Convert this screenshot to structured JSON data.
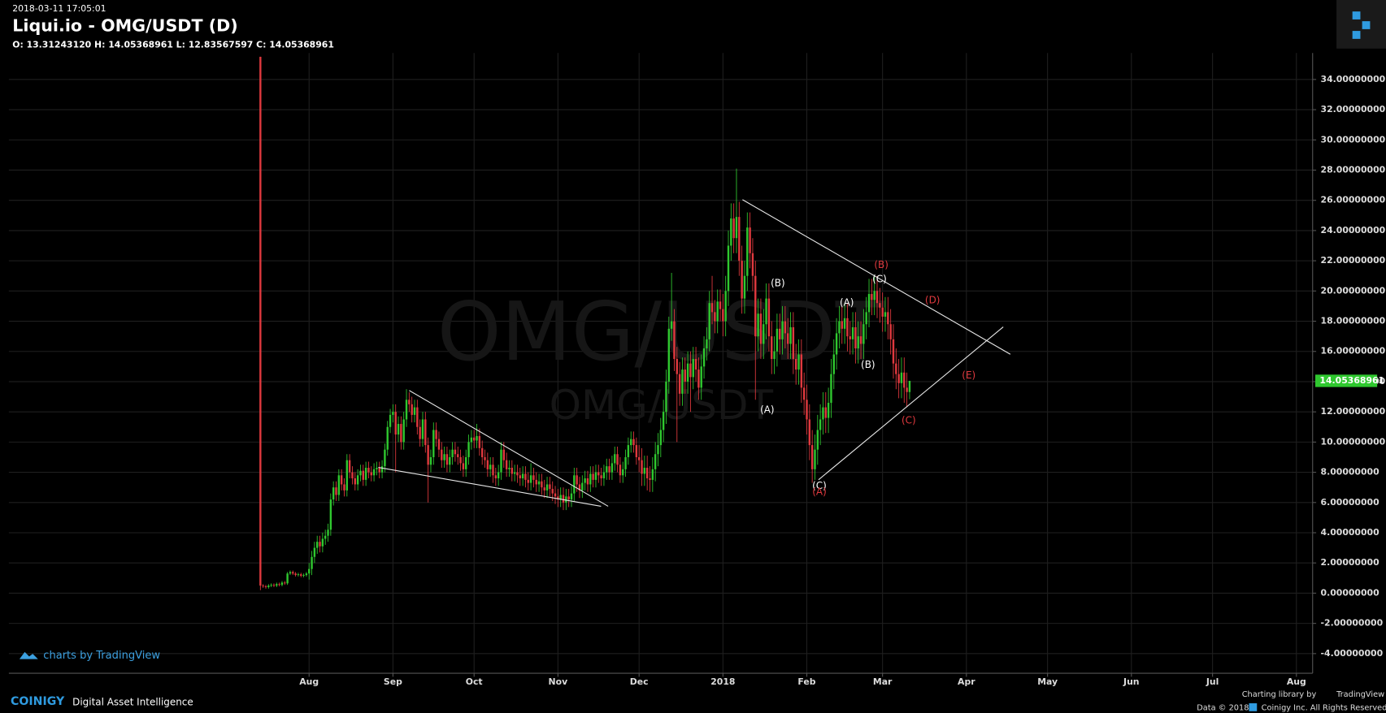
{
  "header": {
    "timestamp": "2018-03-11 17:05:01",
    "title": "Liqui.io - OMG/USDT (D)",
    "ohlc_text": "O: 13.31243120 H: 14.05368961 L: 12.83567597 C: 14.05368961"
  },
  "chart_data": {
    "type": "candlestick",
    "watermark": "OMG/USDT",
    "up_color": "#2fc82f",
    "down_color": "#e0393e",
    "grid": true,
    "xlim": [
      -93,
      389
    ],
    "ylim": [
      -5.3,
      35.75
    ],
    "xticks": [
      {
        "value": 18,
        "label": "Aug"
      },
      {
        "value": 49,
        "label": "Sep"
      },
      {
        "value": 79,
        "label": "Oct"
      },
      {
        "value": 110,
        "label": "Nov"
      },
      {
        "value": 140,
        "label": "Dec"
      },
      {
        "value": 171,
        "label": "2018"
      },
      {
        "value": 202,
        "label": "Feb"
      },
      {
        "value": 230,
        "label": "Mar"
      },
      {
        "value": 261,
        "label": "Apr"
      },
      {
        "value": 291,
        "label": "May"
      },
      {
        "value": 322,
        "label": "Jun"
      },
      {
        "value": 352,
        "label": "Jul"
      },
      {
        "value": 383,
        "label": "Aug"
      }
    ],
    "yticks": [
      {
        "value": -4,
        "label": "-4.00000000"
      },
      {
        "value": -2,
        "label": "-2.00000000"
      },
      {
        "value": 0,
        "label": "0.00000000"
      },
      {
        "value": 2,
        "label": "2.00000000"
      },
      {
        "value": 4,
        "label": "4.00000000"
      },
      {
        "value": 6,
        "label": "6.00000000"
      },
      {
        "value": 8,
        "label": "8.00000000"
      },
      {
        "value": 10,
        "label": "10.00000000"
      },
      {
        "value": 12,
        "label": "12.00000000"
      },
      {
        "value": 14,
        "label": "14.00000000"
      },
      {
        "value": 16,
        "label": "16.00000000"
      },
      {
        "value": 18,
        "label": "18.00000000"
      },
      {
        "value": 20,
        "label": "20.00000000"
      },
      {
        "value": 22,
        "label": "22.00000000"
      },
      {
        "value": 24,
        "label": "24.00000000"
      },
      {
        "value": 26,
        "label": "26.00000000"
      },
      {
        "value": 28,
        "label": "28.00000000"
      },
      {
        "value": 30,
        "label": "30.00000000"
      },
      {
        "value": 32,
        "label": "32.00000000"
      },
      {
        "value": 34,
        "label": "34.00000000"
      }
    ],
    "open": [
      35.5,
      0.5,
      0.45,
      0.4,
      0.5,
      0.55,
      0.5,
      0.6,
      0.55,
      0.7,
      0.65,
      1.3,
      1.4,
      1.3,
      1.2,
      1.25,
      1.15,
      1.2,
      1.3,
      1.6,
      2.4,
      3.0,
      3.4,
      3.1,
      3.6,
      3.8,
      4.2,
      6.2,
      7.0,
      6.5,
      7.8,
      7.2,
      6.8,
      8.8,
      8.0,
      7.6,
      7.2,
      7.8,
      8.1,
      7.5,
      8.3,
      8.0,
      7.8,
      8.2,
      8.3,
      8.0,
      8.4,
      9.5,
      11.0,
      11.8,
      12.0,
      10.5,
      11.2,
      10.0,
      11.5,
      12.8,
      12.5,
      11.8,
      12.3,
      11.0,
      10.2,
      11.5,
      9.8,
      8.5,
      9.0,
      10.8,
      10.2,
      9.5,
      8.8,
      9.2,
      8.5,
      9.0,
      9.5,
      9.2,
      9.0,
      8.6,
      8.2,
      9.0,
      10.0,
      10.3,
      10.1,
      10.4,
      9.6,
      9.0,
      8.8,
      8.2,
      8.5,
      7.8,
      7.6,
      8.0,
      9.5,
      8.8,
      8.2,
      8.3,
      7.9,
      8.0,
      7.8,
      7.6,
      7.9,
      7.5,
      7.3,
      7.8,
      7.5,
      7.2,
      7.4,
      7.0,
      6.8,
      7.2,
      6.9,
      6.6,
      6.4,
      6.2,
      6.5,
      6.0,
      6.4,
      6.2,
      6.6,
      7.8,
      7.2,
      6.8,
      7.3,
      7.6,
      7.2,
      7.9,
      7.5,
      8.0,
      7.8,
      7.6,
      8.0,
      8.4,
      8.0,
      8.6,
      9.2,
      8.5,
      7.8,
      8.2,
      9.0,
      9.8,
      10.2,
      9.8,
      9.0,
      8.8,
      7.9,
      8.3,
      7.6,
      7.5,
      8.2,
      9.2,
      9.8,
      10.8,
      12.0,
      14.0,
      17.5,
      18.0,
      15.5,
      14.5,
      13.2,
      14.8,
      14.0,
      15.2,
      14.3,
      15.5,
      14.8,
      13.6,
      15.0,
      16.2,
      16.8,
      19.2,
      18.6,
      18.0,
      19.3,
      18.8,
      18.0,
      20.0,
      23.0,
      24.8,
      23.5,
      24.9,
      22.0,
      19.5,
      21.0,
      24.2,
      22.5,
      21.0,
      17.0,
      18.5,
      16.5,
      17.8,
      19.5,
      17.0,
      15.5,
      16.0,
      17.5,
      16.8,
      18.0,
      17.2,
      16.5,
      17.6,
      15.5,
      14.8,
      15.8,
      13.6,
      12.8,
      11.5,
      9.8,
      8.2,
      9.5,
      10.8,
      11.5,
      12.3,
      11.6,
      12.6,
      14.5,
      15.8,
      17.2,
      18.0,
      17.5,
      18.2,
      17.0,
      16.8,
      17.6,
      16.2,
      17.0,
      16.5,
      17.8,
      18.6,
      19.8,
      19.4,
      20.0,
      19.2,
      18.9,
      18.3,
      18.6,
      17.8,
      16.8,
      15.2,
      14.5,
      13.9,
      14.6,
      13.6,
      13.3124312
    ],
    "high": [
      35.5,
      0.6,
      0.55,
      0.6,
      0.65,
      0.65,
      0.7,
      0.7,
      0.8,
      0.8,
      1.4,
      1.5,
      1.5,
      1.4,
      1.35,
      1.35,
      1.3,
      1.4,
      2.0,
      2.8,
      3.4,
      3.8,
      3.8,
      4.0,
      4.2,
      4.6,
      6.6,
      7.4,
      7.4,
      8.2,
      8.2,
      7.6,
      9.2,
      9.2,
      8.4,
      8.0,
      8.2,
      8.5,
      8.5,
      8.7,
      8.7,
      8.4,
      8.6,
      8.7,
      8.7,
      8.8,
      9.9,
      11.4,
      12.2,
      12.5,
      12.5,
      11.7,
      11.7,
      12.0,
      13.5,
      13.3,
      13.0,
      12.8,
      12.8,
      11.5,
      12.0,
      12.0,
      10.3,
      9.5,
      11.3,
      11.3,
      10.7,
      10.0,
      9.7,
      9.7,
      9.5,
      10.0,
      10.0,
      9.7,
      9.5,
      9.1,
      9.5,
      10.5,
      10.8,
      10.8,
      11.2,
      10.9,
      10.1,
      9.5,
      9.3,
      9.0,
      9.0,
      8.3,
      8.5,
      10.0,
      10.0,
      9.3,
      8.8,
      8.8,
      8.5,
      8.5,
      8.3,
      8.4,
      8.4,
      8.0,
      8.6,
      8.3,
      8.0,
      7.9,
      7.9,
      7.5,
      7.7,
      7.7,
      7.4,
      7.1,
      6.9,
      7.0,
      7.0,
      6.9,
      6.9,
      7.1,
      8.3,
      8.3,
      7.7,
      7.8,
      8.1,
      8.1,
      8.4,
      8.4,
      8.5,
      8.5,
      8.3,
      8.5,
      8.9,
      8.9,
      9.1,
      9.7,
      9.7,
      9.0,
      8.7,
      9.5,
      10.3,
      10.7,
      10.7,
      10.3,
      9.8,
      9.6,
      9.1,
      9.1,
      8.4,
      9.0,
      10.0,
      10.6,
      11.6,
      12.8,
      14.8,
      18.3,
      21.2,
      18.8,
      16.3,
      15.3,
      15.6,
      15.6,
      16.0,
      16.0,
      16.3,
      16.3,
      15.6,
      15.8,
      17.0,
      17.6,
      20.0,
      21.0,
      19.4,
      20.1,
      20.1,
      19.8,
      21.0,
      24.0,
      25.8,
      25.8,
      28.1,
      25.9,
      23.0,
      22.0,
      25.2,
      25.2,
      23.5,
      22.0,
      19.5,
      19.5,
      18.8,
      20.5,
      20.5,
      18.0,
      17.0,
      18.5,
      18.5,
      19.0,
      19.0,
      18.2,
      18.6,
      18.6,
      16.5,
      16.8,
      16.8,
      14.6,
      13.8,
      12.5,
      10.8,
      10.5,
      11.8,
      12.5,
      13.3,
      13.3,
      13.6,
      15.5,
      16.8,
      18.2,
      19.0,
      19.0,
      19.2,
      19.2,
      18.0,
      18.6,
      18.6,
      18.0,
      18.0,
      18.8,
      19.6,
      20.8,
      20.8,
      21.0,
      21.0,
      20.2,
      19.9,
      19.6,
      19.6,
      18.8,
      17.8,
      16.2,
      15.5,
      15.6,
      15.6,
      14.6,
      14.05368961
    ],
    "low": [
      0.2,
      0.35,
      0.3,
      0.3,
      0.4,
      0.4,
      0.4,
      0.45,
      0.45,
      0.55,
      0.55,
      1.2,
      1.2,
      1.1,
      1.1,
      1.05,
      1.05,
      1.1,
      0.9,
      1.2,
      2.0,
      2.6,
      2.7,
      2.7,
      3.2,
      3.4,
      3.8,
      5.8,
      6.1,
      6.1,
      6.8,
      6.4,
      6.4,
      7.6,
      7.2,
      6.8,
      6.8,
      7.4,
      7.1,
      7.1,
      7.6,
      7.4,
      7.4,
      7.8,
      7.6,
      7.6,
      8.0,
      9.1,
      10.6,
      11.3,
      8.0,
      10.0,
      9.5,
      9.5,
      11.0,
      12.0,
      11.3,
      11.3,
      10.5,
      9.7,
      9.7,
      9.3,
      6.0,
      8.0,
      8.5,
      9.7,
      9.0,
      8.3,
      8.3,
      8.0,
      8.0,
      8.5,
      8.7,
      8.5,
      8.1,
      7.7,
      7.7,
      8.5,
      9.5,
      9.6,
      9.6,
      9.1,
      8.5,
      8.3,
      7.7,
      7.7,
      7.3,
      7.1,
      7.1,
      7.5,
      8.3,
      7.7,
      7.7,
      7.4,
      7.4,
      7.3,
      7.1,
      7.1,
      7.0,
      6.8,
      6.8,
      7.0,
      6.7,
      6.7,
      6.5,
      6.3,
      6.3,
      6.4,
      6.1,
      5.9,
      5.7,
      5.7,
      5.5,
      5.5,
      5.7,
      5.7,
      6.1,
      6.7,
      6.3,
      6.3,
      6.8,
      6.7,
      6.7,
      7.0,
      7.0,
      7.3,
      7.1,
      7.1,
      7.5,
      7.5,
      7.5,
      8.1,
      8.0,
      7.3,
      7.3,
      7.7,
      8.5,
      9.3,
      9.3,
      8.5,
      8.0,
      7.1,
      7.1,
      6.8,
      6.7,
      6.7,
      7.4,
      8.4,
      9.0,
      10.0,
      11.2,
      13.2,
      16.7,
      14.7,
      10.0,
      12.4,
      12.4,
      13.2,
      13.2,
      12.0,
      13.5,
      14.0,
      12.8,
      12.8,
      14.2,
      15.4,
      16.0,
      17.8,
      17.2,
      17.2,
      18.0,
      17.0,
      17.0,
      19.0,
      22.0,
      22.5,
      22.5,
      21.0,
      18.5,
      18.5,
      20.0,
      21.5,
      20.0,
      12.8,
      16.0,
      15.5,
      15.5,
      16.8,
      16.0,
      14.5,
      14.5,
      15.0,
      15.8,
      15.8,
      16.2,
      15.5,
      15.5,
      14.5,
      13.8,
      13.8,
      12.6,
      11.8,
      10.5,
      8.8,
      7.3,
      7.5,
      8.5,
      9.8,
      10.5,
      10.6,
      10.6,
      11.6,
      13.5,
      14.8,
      16.2,
      16.5,
      16.5,
      16.0,
      15.8,
      15.8,
      15.2,
      15.2,
      15.5,
      15.5,
      16.8,
      17.6,
      18.4,
      18.4,
      18.2,
      17.9,
      17.3,
      17.3,
      16.8,
      15.8,
      14.2,
      13.5,
      12.9,
      12.9,
      12.6,
      12.3,
      12.83567597
    ],
    "close": [
      0.5,
      0.45,
      0.4,
      0.5,
      0.55,
      0.5,
      0.6,
      0.55,
      0.7,
      0.65,
      1.3,
      1.4,
      1.3,
      1.2,
      1.25,
      1.15,
      1.2,
      1.3,
      1.6,
      2.4,
      3.0,
      3.4,
      3.1,
      3.6,
      3.8,
      4.2,
      6.2,
      7.0,
      6.5,
      7.8,
      7.2,
      6.8,
      8.8,
      8.0,
      7.6,
      7.2,
      7.8,
      8.1,
      7.5,
      8.3,
      8.0,
      7.8,
      8.2,
      8.3,
      8.0,
      8.4,
      9.5,
      11.0,
      11.8,
      12.0,
      10.5,
      11.2,
      10.0,
      11.5,
      12.8,
      12.5,
      11.8,
      12.3,
      11.0,
      10.2,
      11.5,
      9.8,
      8.5,
      9.0,
      10.8,
      10.2,
      9.5,
      8.8,
      9.2,
      8.5,
      9.0,
      9.5,
      9.2,
      9.0,
      8.6,
      8.2,
      9.0,
      10.0,
      10.3,
      10.1,
      10.4,
      9.6,
      9.0,
      8.8,
      8.2,
      8.5,
      7.8,
      7.6,
      8.0,
      9.5,
      8.8,
      8.2,
      8.3,
      7.9,
      8.0,
      7.8,
      7.6,
      7.9,
      7.5,
      7.3,
      7.8,
      7.5,
      7.2,
      7.4,
      7.0,
      6.8,
      7.2,
      6.9,
      6.6,
      6.4,
      6.2,
      6.5,
      6.0,
      6.4,
      6.2,
      6.6,
      7.8,
      7.2,
      6.8,
      7.3,
      7.6,
      7.2,
      7.9,
      7.5,
      8.0,
      7.8,
      7.6,
      8.0,
      8.4,
      8.0,
      8.6,
      9.2,
      8.5,
      7.8,
      8.2,
      9.0,
      9.8,
      10.2,
      9.8,
      9.0,
      8.8,
      7.9,
      8.3,
      7.6,
      7.5,
      8.2,
      9.2,
      9.8,
      10.8,
      12.0,
      14.0,
      17.5,
      18.0,
      15.5,
      14.5,
      13.2,
      14.8,
      14.0,
      15.2,
      14.3,
      15.5,
      14.8,
      13.6,
      15.0,
      16.2,
      16.8,
      19.2,
      18.6,
      18.0,
      19.3,
      18.8,
      18.0,
      20.0,
      23.0,
      24.8,
      23.5,
      24.9,
      22.0,
      19.5,
      21.0,
      24.2,
      22.5,
      21.0,
      17.0,
      18.5,
      16.5,
      17.8,
      19.5,
      17.0,
      15.5,
      16.0,
      17.5,
      16.8,
      18.0,
      17.2,
      16.5,
      17.6,
      15.5,
      14.8,
      15.8,
      13.6,
      12.8,
      11.5,
      9.8,
      8.2,
      9.5,
      10.8,
      11.5,
      12.3,
      11.6,
      12.6,
      14.5,
      15.8,
      17.2,
      18.0,
      17.5,
      18.2,
      17.0,
      16.8,
      17.6,
      16.2,
      17.0,
      16.5,
      17.8,
      18.6,
      19.8,
      19.4,
      20.0,
      19.2,
      18.9,
      18.3,
      18.6,
      17.8,
      16.8,
      15.2,
      14.5,
      13.9,
      14.6,
      13.6,
      13.3124312,
      14.05368961
    ],
    "last_price_label": "14.05368961",
    "wave_labels": [
      "(B)",
      "(A)",
      "(C)",
      "(A)",
      "(B)",
      "(C)",
      "(B)",
      "(D)",
      "(E)",
      "(C)",
      "(A)"
    ],
    "wave_label_colors": [
      "#ffffff",
      "#ffffff",
      "#ffffff",
      "#ffffff",
      "#ffffff",
      "#ffffff",
      "#e0393e",
      "#e0393e",
      "#e0393e",
      "#e0393e",
      "#e0393e"
    ]
  },
  "footer": {
    "tv_brand": "charts by TradingView",
    "coinigy": "COINIGY",
    "tagline": "Digital Asset Intelligence",
    "charting_by": "Charting library by",
    "tv_name": "TradingView",
    "data_year": "Data © 2018",
    "rights": "Coinigy Inc. All Rights Reserved."
  }
}
